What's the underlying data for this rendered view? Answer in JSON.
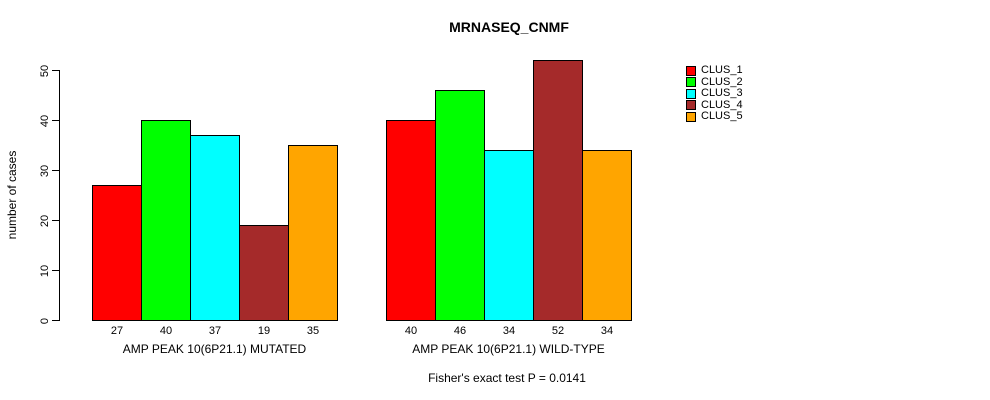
{
  "title": "MRNASEQ_CNMF",
  "footer": "Fisher's exact test P = 0.0141",
  "chart_data": {
    "type": "bar",
    "title": "MRNASEQ_CNMF",
    "xlabel": "",
    "ylabel": "number of cases",
    "ylim": [
      0,
      50
    ],
    "y_ticks": [
      0,
      10,
      20,
      30,
      40,
      50
    ],
    "grid": false,
    "legend_position": "right",
    "categories": [
      "AMP PEAK 10(6P21.1) MUTATED",
      "AMP PEAK 10(6P21.1) WILD-TYPE"
    ],
    "series": [
      {
        "name": "CLUS_1",
        "color": "#FF0000",
        "values": [
          27,
          40
        ]
      },
      {
        "name": "CLUS_2",
        "color": "#00FF00",
        "values": [
          40,
          46
        ]
      },
      {
        "name": "CLUS_3",
        "color": "#00FFFF",
        "values": [
          37,
          34
        ]
      },
      {
        "name": "CLUS_4",
        "color": "#A52A2A",
        "values": [
          19,
          52
        ]
      },
      {
        "name": "CLUS_5",
        "color": "#FFA500",
        "values": [
          35,
          34
        ]
      }
    ],
    "bar_value_labels": [
      [
        27,
        40,
        37,
        19,
        35
      ],
      [
        40,
        46,
        34,
        52,
        34
      ]
    ],
    "annotation": "Fisher's exact test P = 0.0141"
  }
}
